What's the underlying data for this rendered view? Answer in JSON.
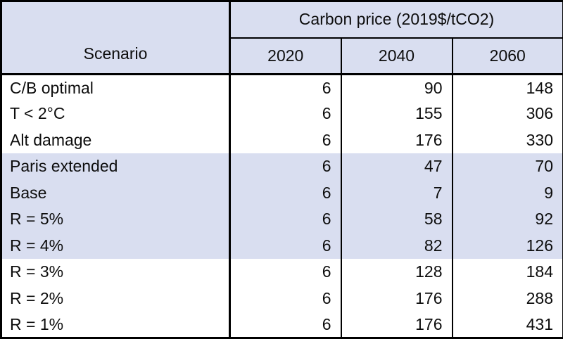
{
  "chart_data": {
    "type": "table",
    "scenario_header": "Scenario",
    "group_header": "Carbon price (2019$/tCO2)",
    "year_columns": [
      "2020",
      "2040",
      "2060"
    ],
    "rows": [
      {
        "scenario": "C/B optimal",
        "values": [
          6,
          90,
          148
        ],
        "shaded": false
      },
      {
        "scenario": "T < 2°C",
        "values": [
          6,
          155,
          306
        ],
        "shaded": false
      },
      {
        "scenario": "Alt damage",
        "values": [
          6,
          176,
          330
        ],
        "shaded": false
      },
      {
        "scenario": "Paris extended",
        "values": [
          6,
          47,
          70
        ],
        "shaded": true
      },
      {
        "scenario": "Base",
        "values": [
          6,
          7,
          9
        ],
        "shaded": true
      },
      {
        "scenario": "R = 5%",
        "values": [
          6,
          58,
          92
        ],
        "shaded": true
      },
      {
        "scenario": "R = 4%",
        "values": [
          6,
          82,
          126
        ],
        "shaded": true
      },
      {
        "scenario": "R = 3%",
        "values": [
          6,
          128,
          184
        ],
        "shaded": false
      },
      {
        "scenario": "R = 2%",
        "values": [
          6,
          176,
          288
        ],
        "shaded": false
      },
      {
        "scenario": "R = 1%",
        "values": [
          6,
          176,
          431
        ],
        "shaded": false
      }
    ]
  },
  "colors": {
    "header_bg": "#d9def0",
    "band_bg": "#d9def0",
    "row_bg": "#ffffff",
    "border": "#000000",
    "text": "#0d0d0d"
  }
}
